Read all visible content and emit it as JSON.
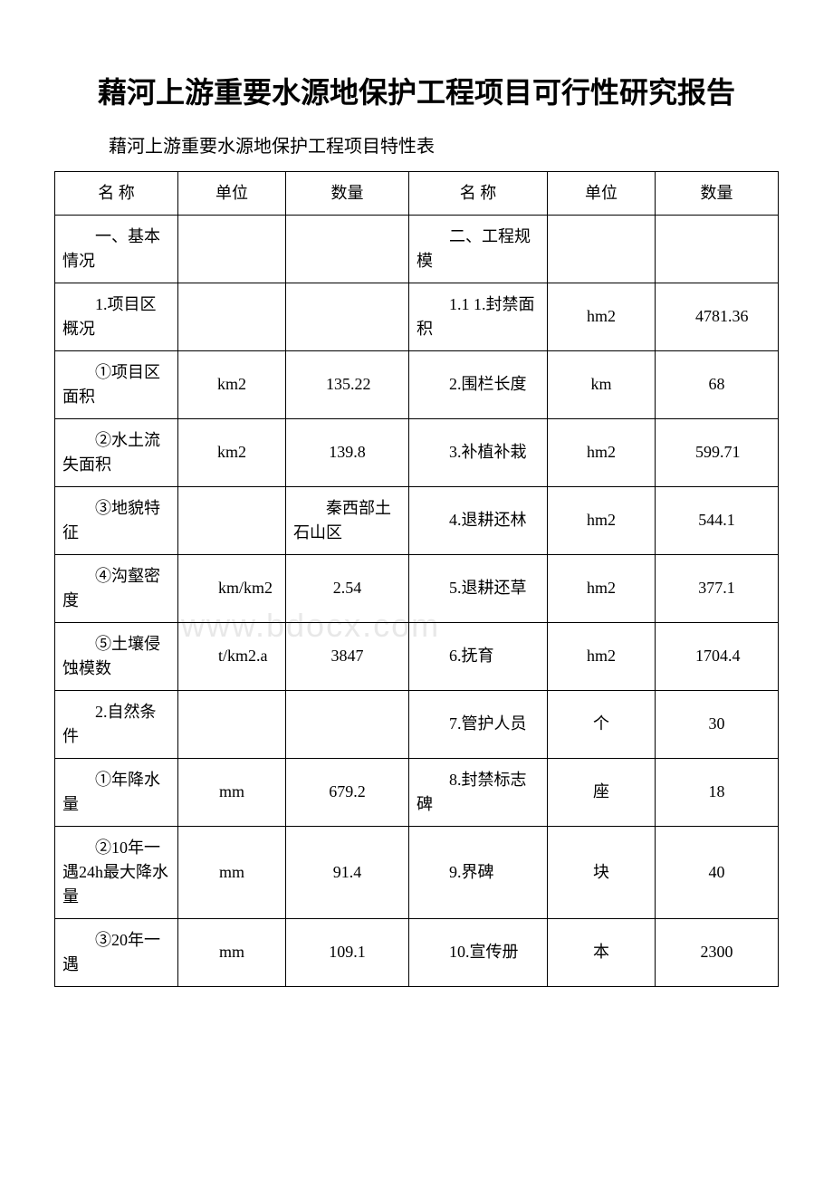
{
  "title": "藉河上游重要水源地保护工程项目可行性研究报告",
  "subtitle": "藉河上游重要水源地保护工程项目特性表",
  "watermark": "www.bdocx.com",
  "headers": {
    "name1": "名 称",
    "unit1": "单位",
    "qty1": "数量",
    "name2": "名 称",
    "unit2": "单位",
    "qty2": "数量"
  },
  "rows": [
    {
      "c1": "　　一、基本情况",
      "c2": "",
      "c3": "",
      "c4": "　　二、工程规模",
      "c5": "",
      "c6": ""
    },
    {
      "c1": "　　1.项目区概况",
      "c2": "",
      "c3": "",
      "c4": "　　1.1 1.封禁面积",
      "c5": "hm2",
      "c6": "　　4781.36"
    },
    {
      "c1": "　　①项目区面积",
      "c2": "km2",
      "c3": "　　135.22",
      "c4": "　　2.围栏长度",
      "c5": "km",
      "c6": "68"
    },
    {
      "c1": "　　②水土流失面积",
      "c2": "km2",
      "c3": "139.8",
      "c4": "　　3.补植补栽",
      "c5": "hm2",
      "c6": "　　599.71"
    },
    {
      "c1": "　　③地貌特征",
      "c2": "",
      "c3": "　　秦西部土石山区",
      "c4": "　　4.退耕还林",
      "c5": "hm2",
      "c6": "544.1"
    },
    {
      "c1": "　　④沟壑密度",
      "c2": "　　km/km2",
      "c3": "2.54",
      "c4": "　　5.退耕还草",
      "c5": "hm2",
      "c6": "377.1"
    },
    {
      "c1": "　　⑤土壤侵蚀模数",
      "c2": "　　t/km2.a",
      "c3": "3847",
      "c4": "　　6.抚育",
      "c5": "hm2",
      "c6": "　　1704.4"
    },
    {
      "c1": "　　2.自然条件",
      "c2": "",
      "c3": "",
      "c4": "　　7.管护人员",
      "c5": "个",
      "c6": "30"
    },
    {
      "c1": "　　①年降水量",
      "c2": "mm",
      "c3": "679.2",
      "c4": "　　8.封禁标志碑",
      "c5": "座",
      "c6": "18"
    },
    {
      "c1": "　　②10年一遇24h最大降水量",
      "c2": "mm",
      "c3": "91.4",
      "c4": "　　9.界碑",
      "c5": "块",
      "c6": "40"
    },
    {
      "c1": "　　③20年一遇",
      "c2": "mm",
      "c3": "109.1",
      "c4": "　　10.宣传册",
      "c5": "本",
      "c6": "2300"
    }
  ],
  "styles": {
    "background_color": "#ffffff",
    "text_color": "#000000",
    "border_color": "#000000",
    "watermark_color": "#e8e8e8",
    "title_fontsize": 32,
    "subtitle_fontsize": 20,
    "cell_fontsize": 18,
    "column_widths": [
      "16%",
      "14%",
      "16%",
      "18%",
      "14%",
      "16%"
    ]
  }
}
